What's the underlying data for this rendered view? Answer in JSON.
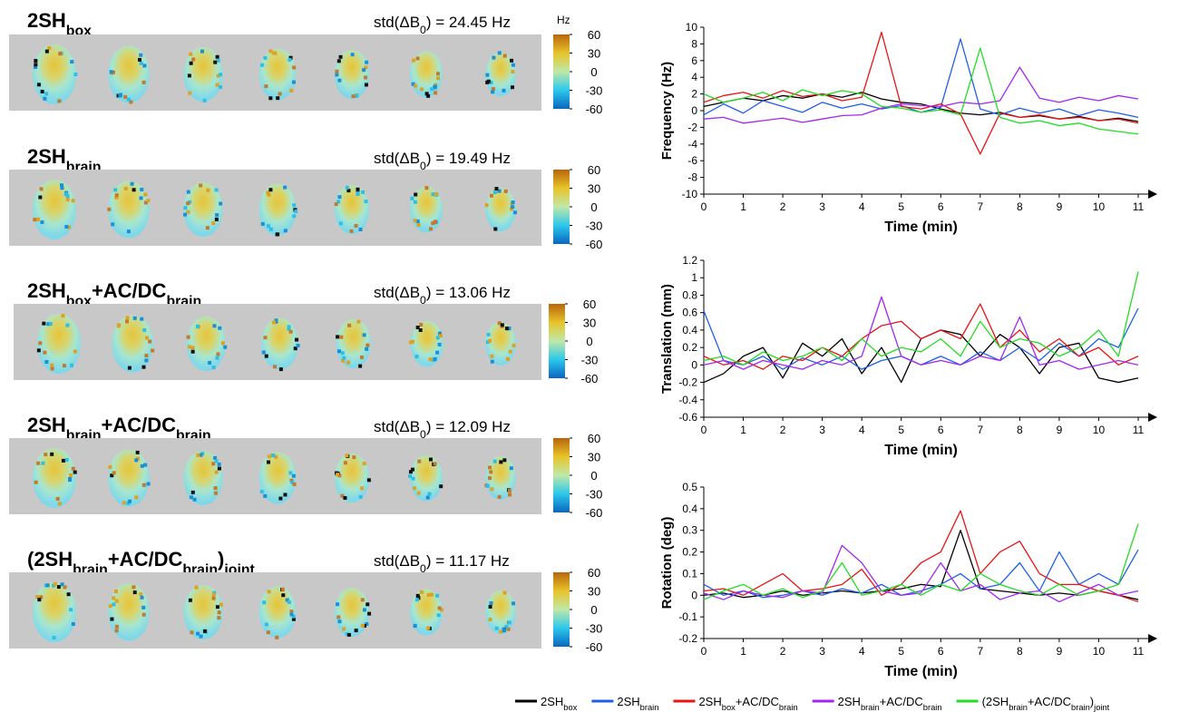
{
  "panels": [
    {
      "label": [
        "2SH",
        {
          "sub": "box"
        }
      ],
      "std": 24.45
    },
    {
      "label": [
        "2SH",
        {
          "sub": "brain"
        }
      ],
      "std": 19.49
    },
    {
      "label": [
        "2SH",
        {
          "sub": "box"
        },
        "+AC/DC",
        {
          "sub": "brain"
        }
      ],
      "std": 13.06
    },
    {
      "label": [
        "2SH",
        {
          "sub": "brain"
        },
        "+AC/DC",
        {
          "sub": "brain"
        }
      ],
      "std": 12.09
    },
    {
      "label": [
        "(2SH",
        {
          "sub": "brain"
        },
        "+AC/DC",
        {
          "sub": "brain"
        },
        ")",
        {
          "sub": "joint"
        }
      ],
      "std": 11.17
    }
  ],
  "std_label": [
    "std(ΔB",
    {
      "sub": "0"
    },
    ") = "
  ],
  "std_unit": " Hz",
  "colorbar": {
    "label": "Hz",
    "lim": [
      -60,
      60
    ],
    "ticks": [
      60,
      30,
      0,
      -30,
      -60
    ],
    "colors": [
      "#0a66c0",
      "#2cc8ec",
      "#bfe8a8",
      "#e8c42a",
      "#b8650c"
    ]
  },
  "legend": [
    {
      "name": [
        "2SH",
        {
          "sub": "box"
        }
      ],
      "color": "#000000"
    },
    {
      "name": [
        "2SH",
        {
          "sub": "brain"
        }
      ],
      "color": "#1f5fe8"
    },
    {
      "name": [
        "2SH",
        {
          "sub": "box"
        },
        "+AC/DC",
        {
          "sub": "brain"
        }
      ],
      "color": "#e81414"
    },
    {
      "name": [
        "2SH",
        {
          "sub": "brain"
        },
        "+AC/DC",
        {
          "sub": "brain"
        }
      ],
      "color": "#a526f0"
    },
    {
      "name": [
        "(2SH",
        {
          "sub": "brain"
        },
        "+AC/DC",
        {
          "sub": "brain"
        },
        ")",
        {
          "sub": "joint"
        }
      ],
      "color": "#22dd22"
    }
  ],
  "chart_data": [
    {
      "type": "line",
      "ylabel": "Frequency (Hz)",
      "xlabel": "Time (min)",
      "x": [
        0,
        0.5,
        1,
        1.5,
        2,
        2.5,
        3,
        3.5,
        4,
        4.5,
        5,
        5.5,
        6,
        6.5,
        7,
        7.5,
        8,
        8.5,
        9,
        9.5,
        10,
        10.5,
        11
      ],
      "xlim": [
        0,
        11.3
      ],
      "xticks": [
        0,
        1,
        2,
        3,
        4,
        5,
        6,
        7,
        8,
        9,
        10,
        11
      ],
      "ylim": [
        -10,
        10
      ],
      "yticks": [
        -10,
        -8,
        -6,
        -4,
        -2,
        0,
        2,
        4,
        6,
        8,
        10
      ],
      "series": [
        {
          "values": [
            0.5,
            1.0,
            1.5,
            1.2,
            1.8,
            1.5,
            2.0,
            1.6,
            2.2,
            1.4,
            1.0,
            0.8,
            0.2,
            -0.3,
            -0.5,
            -0.2,
            -0.8,
            -0.6,
            -1.0,
            -0.7,
            -1.2,
            -0.9,
            -1.3
          ]
        },
        {
          "values": [
            -0.5,
            0.8,
            -0.3,
            1.2,
            0.5,
            -0.2,
            1.0,
            0.3,
            0.8,
            0.2,
            0.6,
            -0.2,
            0.4,
            8.6,
            0.2,
            -0.5,
            0.3,
            -0.3,
            0.2,
            -0.6,
            0.1,
            -0.3,
            -0.8
          ]
        },
        {
          "values": [
            1.0,
            1.8,
            2.2,
            1.5,
            2.4,
            1.7,
            2.0,
            1.2,
            1.6,
            9.4,
            0.5,
            0.2,
            0.8,
            -0.4,
            -5.2,
            -0.3,
            -0.8,
            -0.5,
            -1.0,
            -0.8,
            -1.2,
            -1.0,
            -1.5
          ]
        },
        {
          "values": [
            -1.0,
            -0.8,
            -1.5,
            -1.2,
            -0.9,
            -1.4,
            -1.0,
            -0.6,
            -0.5,
            0.3,
            0.8,
            0.6,
            0.5,
            1.0,
            0.8,
            1.2,
            5.2,
            1.5,
            1.0,
            1.6,
            1.2,
            1.8,
            1.4
          ]
        },
        {
          "values": [
            2.0,
            1.0,
            1.5,
            2.2,
            1.2,
            2.5,
            1.8,
            2.4,
            2.0,
            0.5,
            0.3,
            -0.2,
            0.1,
            -0.5,
            7.5,
            -0.8,
            -1.5,
            -1.2,
            -1.8,
            -1.5,
            -2.2,
            -2.5,
            -2.8
          ]
        }
      ]
    },
    {
      "type": "line",
      "ylabel": "Translation (mm)",
      "xlabel": "Time (min)",
      "x": [
        0,
        0.5,
        1,
        1.5,
        2,
        2.5,
        3,
        3.5,
        4,
        4.5,
        5,
        5.5,
        6,
        6.5,
        7,
        7.5,
        8,
        8.5,
        9,
        9.5,
        10,
        10.5,
        11
      ],
      "xlim": [
        0,
        11.3
      ],
      "xticks": [
        0,
        1,
        2,
        3,
        4,
        5,
        6,
        7,
        8,
        9,
        10,
        11
      ],
      "ylim": [
        -0.6,
        1.2
      ],
      "yticks": [
        -0.6,
        -0.4,
        -0.2,
        0,
        0.2,
        0.4,
        0.6,
        0.8,
        1,
        1.2
      ],
      "series": [
        {
          "values": [
            -0.2,
            -0.1,
            0.1,
            0.2,
            -0.15,
            0.25,
            0.1,
            0.3,
            -0.1,
            0.2,
            -0.2,
            0.3,
            0.4,
            0.35,
            0.1,
            0.35,
            0.2,
            -0.1,
            0.2,
            0.25,
            -0.15,
            -0.2,
            -0.15
          ]
        },
        {
          "values": [
            0.62,
            0.05,
            0,
            0.1,
            -0.05,
            0.08,
            0,
            0.1,
            -0.05,
            0.05,
            0.1,
            0,
            0.1,
            0,
            0.15,
            0.05,
            0.2,
            0.05,
            0.25,
            0.1,
            0.3,
            0.2,
            0.65
          ]
        },
        {
          "values": [
            0.1,
            0,
            0.05,
            -0.05,
            0.1,
            0.05,
            0.2,
            0.1,
            0.3,
            0.45,
            0.5,
            0.3,
            0.4,
            0.3,
            0.7,
            0.2,
            0.4,
            0.15,
            0.3,
            0.1,
            0.2,
            0,
            0.1
          ]
        },
        {
          "values": [
            0,
            0.05,
            -0.05,
            0.05,
            0,
            -0.05,
            0.05,
            0,
            0.1,
            0.78,
            0.1,
            0,
            0.05,
            0,
            0.1,
            0.05,
            0.55,
            0,
            0.05,
            -0.05,
            0,
            0.05,
            0
          ]
        },
        {
          "values": [
            0.05,
            0.1,
            0,
            0.15,
            0.05,
            0.1,
            0.2,
            0.05,
            0.3,
            0.1,
            0.2,
            0.15,
            0.3,
            0.1,
            0.5,
            0.2,
            0.3,
            0.25,
            0.1,
            0.2,
            0.4,
            0.1,
            1.07
          ]
        }
      ]
    },
    {
      "type": "line",
      "ylabel": "Rotation (deg)",
      "xlabel": "Time (min)",
      "x": [
        0,
        0.5,
        1,
        1.5,
        2,
        2.5,
        3,
        3.5,
        4,
        4.5,
        5,
        5.5,
        6,
        6.5,
        7,
        7.5,
        8,
        8.5,
        9,
        9.5,
        10,
        10.5,
        11
      ],
      "xlim": [
        0,
        11.3
      ],
      "xticks": [
        0,
        1,
        2,
        3,
        4,
        5,
        6,
        7,
        8,
        9,
        10,
        11
      ],
      "ylim": [
        -0.2,
        0.5
      ],
      "yticks": [
        -0.2,
        -0.1,
        0,
        0.1,
        0.2,
        0.3,
        0.4,
        0.5
      ],
      "series": [
        {
          "values": [
            0,
            0.01,
            -0.01,
            0,
            0.02,
            0,
            0.01,
            0.02,
            0.01,
            0.02,
            0.03,
            0.05,
            0.04,
            0.3,
            0.03,
            0.02,
            0.01,
            0,
            0.01,
            0,
            0.02,
            0,
            -0.02
          ]
        },
        {
          "values": [
            0.05,
            0,
            0.02,
            -0.01,
            0,
            0.02,
            0,
            0.03,
            0.01,
            0.05,
            0,
            0.02,
            0.05,
            0.1,
            0.03,
            0.05,
            0.15,
            0.02,
            0.2,
            0.05,
            0.1,
            0.05,
            0.21
          ]
        },
        {
          "values": [
            0.02,
            0.03,
            0,
            0.05,
            0.1,
            0.02,
            0.03,
            0.05,
            0.12,
            0,
            0.05,
            0.15,
            0.2,
            0.39,
            0.1,
            0.2,
            0.25,
            0.1,
            0.05,
            0.05,
            0.02,
            0,
            -0.03
          ]
        },
        {
          "values": [
            0.01,
            -0.02,
            0.02,
            0,
            -0.01,
            0.02,
            0.01,
            0.23,
            0.15,
            0.02,
            0,
            0.01,
            0.15,
            0.02,
            0.05,
            -0.02,
            0.01,
            0.02,
            -0.03,
            0.01,
            0.05,
            0,
            0.02
          ]
        },
        {
          "values": [
            -0.02,
            0.02,
            0.05,
            0,
            0.03,
            -0.01,
            0.02,
            0.15,
            0,
            0.02,
            0.05,
            0,
            0.05,
            0.02,
            0.1,
            0.05,
            0.02,
            0,
            0.05,
            0,
            0.02,
            0.05,
            0.33
          ]
        }
      ]
    }
  ]
}
